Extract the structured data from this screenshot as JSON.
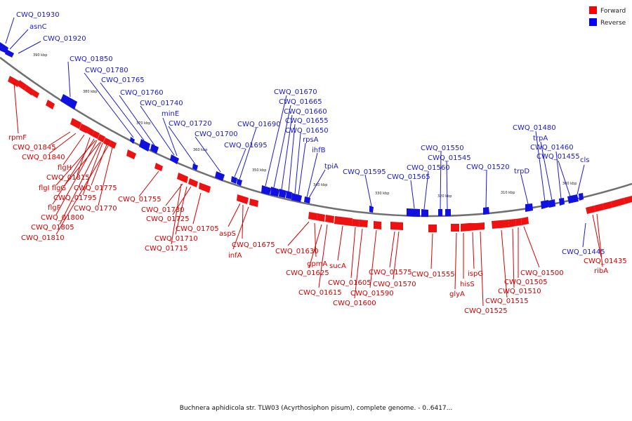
{
  "caption": "Buchnera aphidicola str. TLW03 (Acyrthosiphon pisum), complete genome. - 0..6417...",
  "legend": {
    "forward": {
      "label": "Forward",
      "color": "#ff0000"
    },
    "reverse": {
      "label": "Reverse",
      "color": "#0000ff"
    }
  },
  "ticks": [
    "390 kbp",
    "380 kbp",
    "370 kbp",
    "360 kbp",
    "350 kbp",
    "340 kbp",
    "330 kbp",
    "320 kbp",
    "310 kbp",
    "300 kbp"
  ],
  "reverse_labels": [
    "CWQ_01930",
    "asnC",
    "CWQ_01920",
    "CWQ_01850",
    "CWQ_01780",
    "CWQ_01765",
    "CWQ_01760",
    "CWQ_01740",
    "minE",
    "CWQ_01720",
    "CWQ_01700",
    "CWQ_01690",
    "CWQ_01695",
    "CWQ_01670",
    "CWQ_01665",
    "CWQ_01660",
    "CWQ_01655",
    "CWQ_01650",
    "rpsA",
    "ihfB",
    "tpiA",
    "CWQ_01595",
    "CWQ_01550",
    "CWQ_01545",
    "CWQ_01560",
    "CWQ_01565",
    "CWQ_01520",
    "CWQ_01480",
    "trpA",
    "CWQ_01460",
    "CWQ_01455",
    "trpD",
    "cls",
    "CWQ_01445"
  ],
  "forward_labels": [
    "rpmF",
    "CWQ_01845",
    "CWQ_01840",
    "flgH",
    "CWQ_01815",
    "flgI flgG",
    "CWQ_01775",
    "CWQ_01795",
    "flgF",
    "CWQ_01770",
    "CWQ_01800",
    "CWQ_01805",
    "CWQ_01810",
    "CWQ_01755",
    "CWQ_01730",
    "CWQ_01725",
    "CWQ_01705",
    "CWQ_01710",
    "CWQ_01715",
    "aspS",
    "CWQ_01675",
    "infA",
    "CWQ_01630",
    "gpmA",
    "CWQ_01625",
    "sucA",
    "CWQ_01615",
    "CWQ_01605",
    "CWQ_01600",
    "CWQ_01590",
    "CWQ_01575",
    "CWQ_01570",
    "CWQ_01555",
    "hisS",
    "glyA",
    "ispG",
    "CWQ_01500",
    "CWQ_01505",
    "CWQ_01510",
    "CWQ_01515",
    "CWQ_01525",
    "CWQ_01435",
    "ribA"
  ]
}
